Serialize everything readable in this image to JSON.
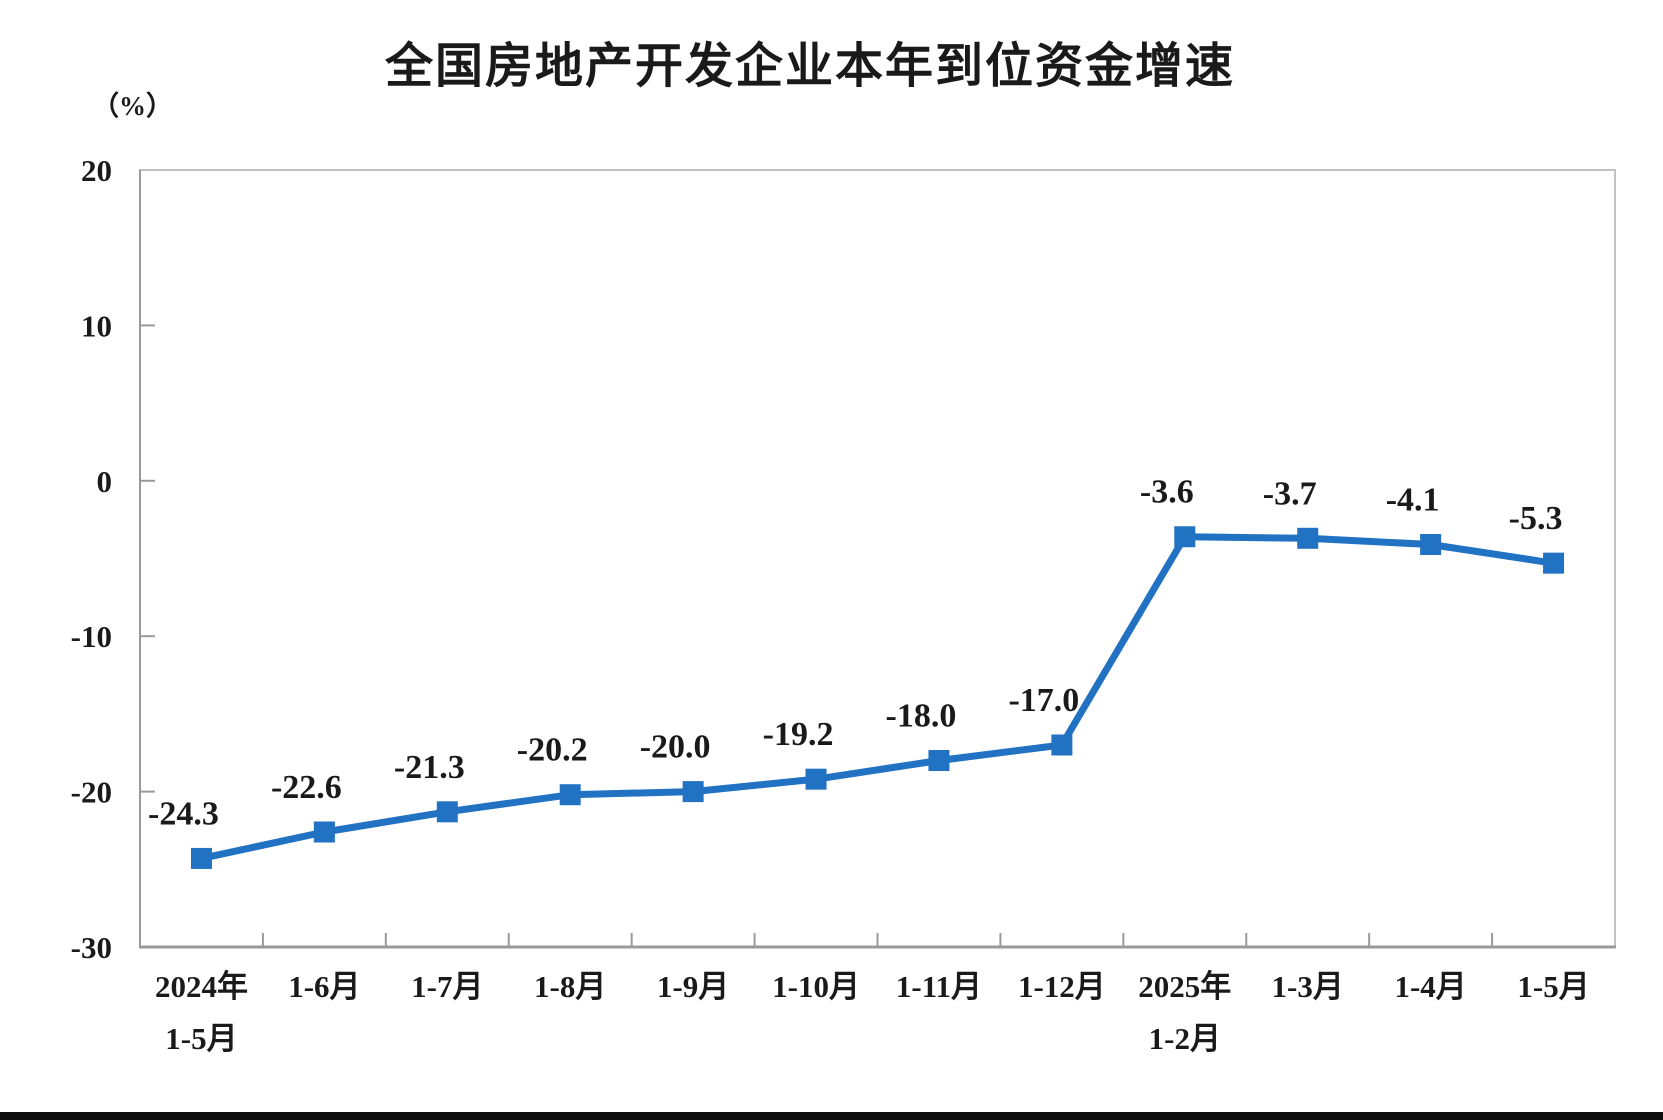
{
  "chart_data": {
    "type": "line",
    "title": "全国房地产开发企业本年到位资金增速",
    "unit_label": "（%）",
    "categories": [
      "2024年\n1-5月",
      "1-6月",
      "1-7月",
      "1-8月",
      "1-9月",
      "1-10月",
      "1-11月",
      "1-12月",
      "2025年\n1-2月",
      "1-3月",
      "1-4月",
      "1-5月"
    ],
    "values": [
      -24.3,
      -22.6,
      -21.3,
      -20.2,
      -20.0,
      -19.2,
      -18.0,
      -17.0,
      -3.6,
      -3.7,
      -4.1,
      -5.3
    ],
    "data_labels": [
      "-24.3",
      "-22.6",
      "-21.3",
      "-20.2",
      "-20.0",
      "-19.2",
      "-18.0",
      "-17.0",
      "-3.6",
      "-3.7",
      "-4.1",
      "-5.3"
    ],
    "xlabel": "",
    "ylabel": "（%）",
    "ylim": [
      -30,
      20
    ],
    "yticks": [
      20,
      10,
      0,
      -10,
      -20,
      -30
    ],
    "grid": "off",
    "legend": "none",
    "marker": "square",
    "line_color": "#2272c4",
    "marker_color": "#2272c4",
    "axis_color": "#9a9a9a",
    "border_color": "#c2c2c2",
    "label_color": "#1a1a1a"
  }
}
